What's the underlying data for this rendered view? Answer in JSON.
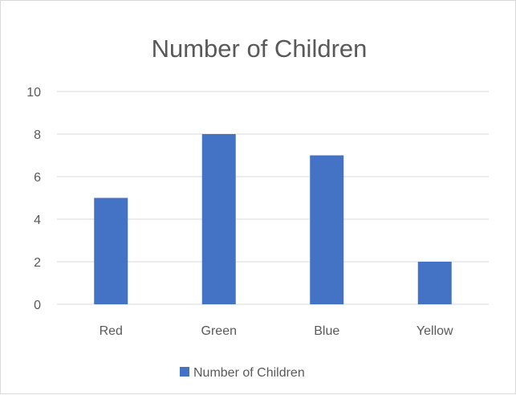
{
  "chart_data": {
    "type": "bar",
    "title": "Number of Children",
    "xlabel": "",
    "ylabel": "",
    "categories": [
      "Red",
      "Green",
      "Blue",
      "Yellow"
    ],
    "series": [
      {
        "name": "Number of Children",
        "values": [
          5,
          8,
          7,
          2
        ],
        "color": "#4472c4"
      }
    ],
    "ylim": [
      0,
      10
    ],
    "yticks": [
      "0",
      "2",
      "4",
      "6",
      "8",
      "10"
    ],
    "grid": true,
    "legend_position": "bottom"
  }
}
